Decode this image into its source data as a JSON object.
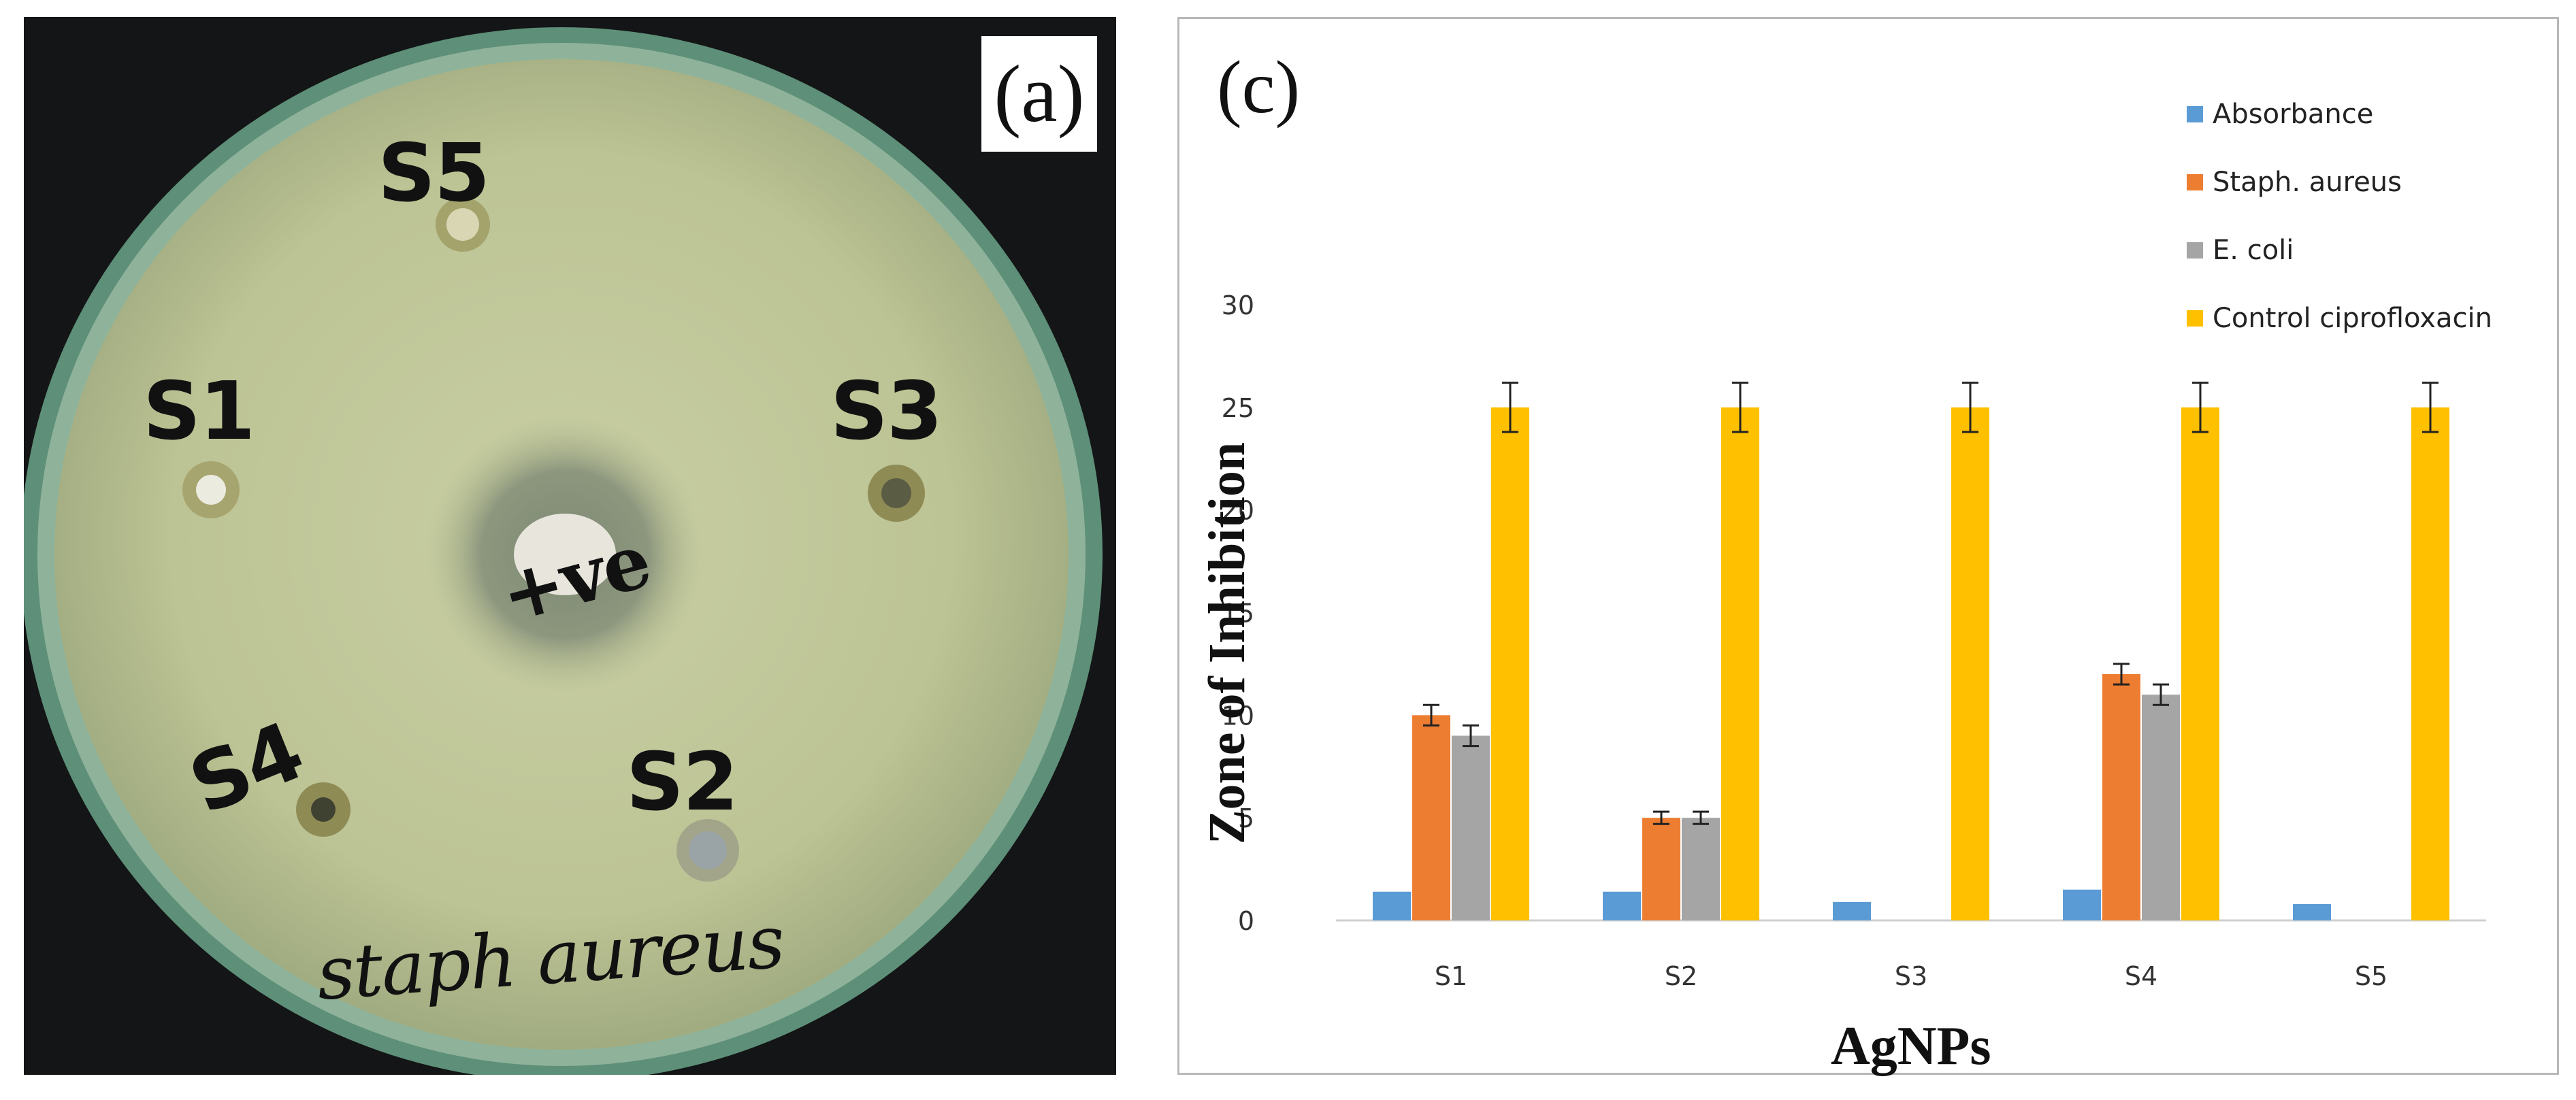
{
  "panel_a": {
    "label": "(a)",
    "wells": [
      "S5",
      "S1",
      "S3",
      "S4",
      "S2"
    ],
    "center_label": "+ve",
    "bottom_label": "staph aureus"
  },
  "panel_c": {
    "label": "(c)"
  },
  "chart_data": {
    "type": "bar",
    "title": "",
    "xlabel": "AgNPs",
    "ylabel": "Zone of Inhibition",
    "categories": [
      "S1",
      "S2",
      "S3",
      "S4",
      "S5"
    ],
    "ylim": [
      0,
      30
    ],
    "yticks": [
      0,
      5,
      10,
      15,
      20,
      25,
      30
    ],
    "grid": false,
    "legend_position": "top-right",
    "series": [
      {
        "name": "Absorbance",
        "color": "#5B9BD5",
        "values": [
          1.4,
          1.4,
          0.9,
          1.5,
          0.8
        ],
        "errors": [
          0,
          0,
          0,
          0,
          0
        ]
      },
      {
        "name": "Staph. aureus",
        "color": "#ED7D31",
        "values": [
          10,
          5,
          null,
          12,
          null
        ],
        "errors": [
          0.5,
          0.3,
          0,
          0.5,
          0
        ]
      },
      {
        "name": "E. coli",
        "color": "#A5A5A5",
        "values": [
          9,
          5,
          null,
          11,
          null
        ],
        "errors": [
          0.5,
          0.3,
          0,
          0.5,
          0
        ]
      },
      {
        "name": "Control ciprofloxacin",
        "color": "#FFC000",
        "values": [
          25,
          25,
          25,
          25,
          25
        ],
        "errors": [
          1.2,
          1.2,
          1.2,
          1.2,
          1.2
        ]
      }
    ]
  }
}
